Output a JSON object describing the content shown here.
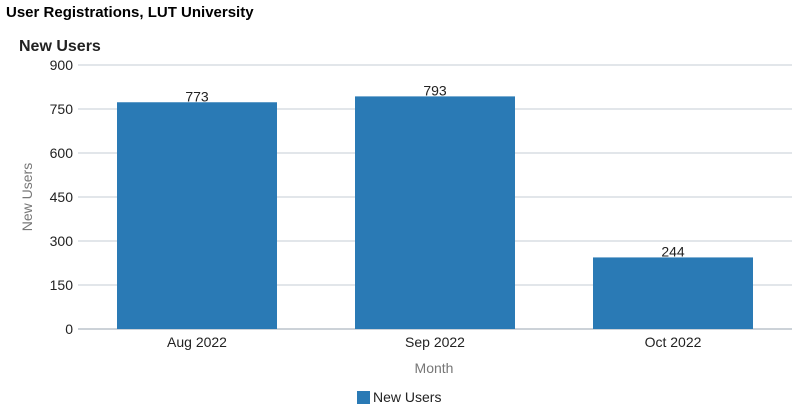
{
  "page": {
    "title": "User Registrations, LUT University"
  },
  "chart_data": {
    "type": "bar",
    "title": "New Users",
    "categories": [
      "Aug 2022",
      "Sep 2022",
      "Oct 2022"
    ],
    "series": [
      {
        "name": "New Users",
        "values": [
          773,
          793,
          244
        ],
        "color": "#2a7ab5"
      }
    ],
    "xlabel": "Month",
    "ylabel": "New Users",
    "ylim": [
      0,
      900
    ],
    "yticks": [
      0,
      150,
      300,
      450,
      600,
      750,
      900
    ],
    "grid": true,
    "legend": "bottom-center",
    "data_labels": true
  }
}
